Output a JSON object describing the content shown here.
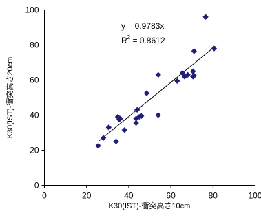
{
  "chart_data": {
    "type": "scatter",
    "title": "",
    "xlabel": "K30(IST)-衝突高さ10cm",
    "ylabel": "K30(IST)-衝突高さ20cm",
    "xlim": [
      0,
      100
    ],
    "ylim": [
      0,
      100
    ],
    "xticks": [
      "0",
      "20",
      "40",
      "60",
      "80",
      "100"
    ],
    "yticks": [
      "0",
      "20",
      "40",
      "60",
      "80",
      "100"
    ],
    "grid": false,
    "legend": "none",
    "marker_color": "#1f1f7a",
    "annotations": {
      "equation": "y = 0.9783x",
      "r2_label": "R",
      "r2_sup": "2",
      "r2_value": " = 0.8612"
    },
    "trendline": {
      "slope": 0.9783,
      "intercept": 0,
      "x_range": [
        26,
        81
      ]
    },
    "series": [
      {
        "x": [
          25.5,
          28,
          30.5,
          34,
          35.5,
          34.8,
          36,
          38,
          43.5,
          43.5,
          44,
          45,
          46,
          48.5,
          54,
          54,
          63,
          65.5,
          66.5,
          68,
          70.5,
          70.5,
          71,
          71,
          76.5,
          80.5
        ],
        "y": [
          22.5,
          27,
          33,
          25,
          37.5,
          39,
          38,
          31.5,
          35.5,
          38,
          43,
          39,
          39.5,
          52.5,
          40,
          63,
          59.5,
          64,
          62,
          63,
          65,
          62,
          62.5,
          76.5,
          96,
          78
        ]
      }
    ]
  }
}
